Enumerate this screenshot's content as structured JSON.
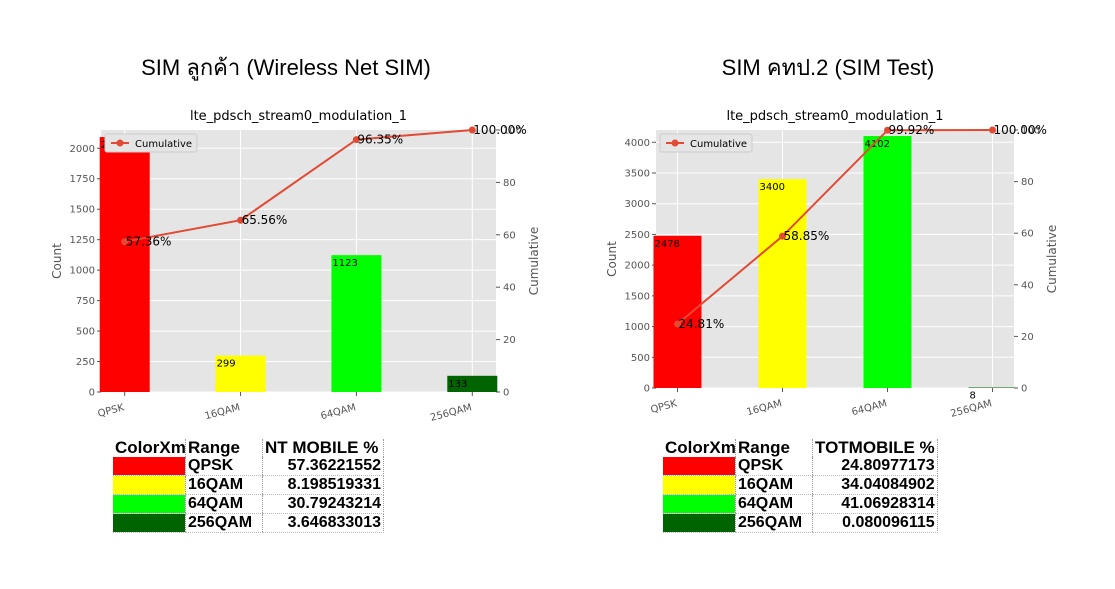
{
  "headings": {
    "left": "SIM ลูกค้า (Wireless Net SIM)",
    "right": "SIM คทป.2 (SIM Test)"
  },
  "colors": {
    "QPSK": "#ff0000",
    "16QAM": "#ffff00",
    "64QAM": "#00ff00",
    "256QAM": "#006400",
    "line": "#e24a33",
    "plot_bg": "#e5e5e5",
    "grid": "#ffffff"
  },
  "chart_data": [
    {
      "type": "bar",
      "title": "lte_pdsch_stream0_modulation_1",
      "categories": [
        "QPSK",
        "16QAM",
        "64QAM",
        "256QAM"
      ],
      "values": [
        2092,
        299,
        1123,
        133
      ],
      "value_labels": [
        "2092",
        "299",
        "1123",
        "133"
      ],
      "cumulative": [
        57.36,
        65.56,
        96.35,
        100.0
      ],
      "cumulative_labels": [
        "57.36%",
        "65.56%",
        "96.35%",
        "100.00%"
      ],
      "ylabel": "Count",
      "y2label": "Cumulative",
      "ylim": [
        0,
        2150
      ],
      "yticks": [
        0,
        250,
        500,
        750,
        1000,
        1250,
        1500,
        1750,
        2000
      ],
      "y2lim": [
        0,
        100
      ],
      "y2ticks": [
        0,
        20,
        40,
        60,
        80,
        100
      ],
      "legend": "Cumulative",
      "legend_position": "top-left",
      "grid": true
    },
    {
      "type": "bar",
      "title": "lte_pdsch_stream0_modulation_1",
      "categories": [
        "QPSK",
        "16QAM",
        "64QAM",
        "256QAM"
      ],
      "values": [
        2478,
        3400,
        4102,
        8
      ],
      "value_labels": [
        "2478",
        "3400",
        "4102",
        "8"
      ],
      "cumulative": [
        24.81,
        58.85,
        99.92,
        100.0
      ],
      "cumulative_labels": [
        "24.81%",
        "58.85%",
        "99.92%",
        "100.00%"
      ],
      "ylabel": "Count",
      "y2label": "Cumulative",
      "ylim": [
        0,
        4200
      ],
      "yticks": [
        0,
        500,
        1000,
        1500,
        2000,
        2500,
        3000,
        3500,
        4000
      ],
      "y2lim": [
        0,
        100
      ],
      "y2ticks": [
        0,
        20,
        40,
        60,
        80,
        100
      ],
      "legend": "Cumulative",
      "legend_position": "top-left",
      "grid": true
    }
  ],
  "tables": {
    "left": {
      "headers": [
        "ColorXm",
        "Range",
        "NT MOBILE %"
      ],
      "rows": [
        {
          "range": "QPSK",
          "percent": "57.36221552"
        },
        {
          "range": "16QAM",
          "percent": "8.198519331"
        },
        {
          "range": "64QAM",
          "percent": "30.79243214"
        },
        {
          "range": "256QAM",
          "percent": "3.646833013"
        }
      ]
    },
    "right": {
      "headers": [
        "ColorXm",
        "Range",
        "TOTMOBILE %"
      ],
      "rows": [
        {
          "range": "QPSK",
          "percent": "24.80977173"
        },
        {
          "range": "16QAM",
          "percent": "34.04084902"
        },
        {
          "range": "64QAM",
          "percent": "41.06928314"
        },
        {
          "range": "256QAM",
          "percent": "0.080096115"
        }
      ]
    }
  }
}
